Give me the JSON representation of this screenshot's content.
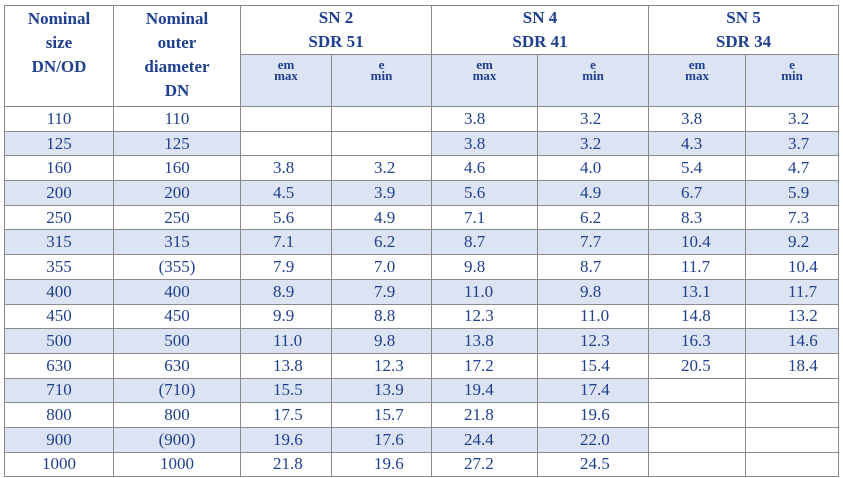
{
  "header": {
    "nominal_size": [
      "Nominal",
      "size",
      "DN/OD"
    ],
    "outer_diameter": [
      "Nominal",
      "outer",
      "diameter",
      "DN"
    ],
    "groups": [
      {
        "line1": "SN 2",
        "line2": "SDR 51"
      },
      {
        "line1": "SN 4",
        "line2": "SDR 41"
      },
      {
        "line1": "SN 5",
        "line2": "SDR 34"
      }
    ],
    "sub": {
      "em_top": "em",
      "em_bottom": "max",
      "e_top": "e",
      "e_bottom": "min"
    }
  },
  "rows": [
    {
      "dn": "110",
      "od": "110",
      "sn2_em": "",
      "sn2_e": "",
      "sn4_em": "3.8",
      "sn4_e": "3.2",
      "sn5_em": "3.8",
      "sn5_e": "3.2"
    },
    {
      "dn": "125",
      "od": "125",
      "sn2_em": "",
      "sn2_e": "",
      "sn4_em": "3.8",
      "sn4_e": "3.2",
      "sn5_em": "4.3",
      "sn5_e": "3.7"
    },
    {
      "dn": "160",
      "od": "160",
      "sn2_em": "3.8",
      "sn2_e": "3.2",
      "sn4_em": "4.6",
      "sn4_e": "4.0",
      "sn5_em": "5.4",
      "sn5_e": "4.7"
    },
    {
      "dn": "200",
      "od": "200",
      "sn2_em": "4.5",
      "sn2_e": "3.9",
      "sn4_em": "5.6",
      "sn4_e": "4.9",
      "sn5_em": "6.7",
      "sn5_e": "5.9"
    },
    {
      "dn": "250",
      "od": "250",
      "sn2_em": "5.6",
      "sn2_e": "4.9",
      "sn4_em": "7.1",
      "sn4_e": "6.2",
      "sn5_em": "8.3",
      "sn5_e": "7.3"
    },
    {
      "dn": "315",
      "od": "315",
      "sn2_em": "7.1",
      "sn2_e": "6.2",
      "sn4_em": "8.7",
      "sn4_e": "7.7",
      "sn5_em": "10.4",
      "sn5_e": "9.2"
    },
    {
      "dn": "355",
      "od": "(355)",
      "sn2_em": "7.9",
      "sn2_e": "7.0",
      "sn4_em": "9.8",
      "sn4_e": "8.7",
      "sn5_em": "11.7",
      "sn5_e": "10.4"
    },
    {
      "dn": "400",
      "od": "400",
      "sn2_em": "8.9",
      "sn2_e": "7.9",
      "sn4_em": "11.0",
      "sn4_e": "9.8",
      "sn5_em": "13.1",
      "sn5_e": "11.7"
    },
    {
      "dn": "450",
      "od": "450",
      "sn2_em": "9.9",
      "sn2_e": "8.8",
      "sn4_em": "12.3",
      "sn4_e": "11.0",
      "sn5_em": "14.8",
      "sn5_e": "13.2"
    },
    {
      "dn": "500",
      "od": "500",
      "sn2_em": "11.0",
      "sn2_e": "9.8",
      "sn4_em": "13.8",
      "sn4_e": "12.3",
      "sn5_em": "16.3",
      "sn5_e": "14.6"
    },
    {
      "dn": "630",
      "od": "630",
      "sn2_em": "13.8",
      "sn2_e": "12.3",
      "sn4_em": "17.2",
      "sn4_e": "15.4",
      "sn5_em": "20.5",
      "sn5_e": "18.4"
    },
    {
      "dn": "710",
      "od": "(710)",
      "sn2_em": "15.5",
      "sn2_e": "13.9",
      "sn4_em": "19.4",
      "sn4_e": "17.4",
      "sn5_em": "",
      "sn5_e": ""
    },
    {
      "dn": "800",
      "od": "800",
      "sn2_em": "17.5",
      "sn2_e": "15.7",
      "sn4_em": "21.8",
      "sn4_e": "19.6",
      "sn5_em": "",
      "sn5_e": ""
    },
    {
      "dn": "900",
      "od": "(900)",
      "sn2_em": "19.6",
      "sn2_e": "17.6",
      "sn4_em": "24.4",
      "sn4_e": "22.0",
      "sn5_em": "",
      "sn5_e": ""
    },
    {
      "dn": "1000",
      "od": "1000",
      "sn2_em": "21.8",
      "sn2_e": "19.6",
      "sn4_em": "27.2",
      "sn4_e": "24.5",
      "sn5_em": "",
      "sn5_e": ""
    }
  ],
  "colors": {
    "text": "#1f3f8f",
    "row_shade": "#dce4f3",
    "border": "#8a8a8a"
  }
}
